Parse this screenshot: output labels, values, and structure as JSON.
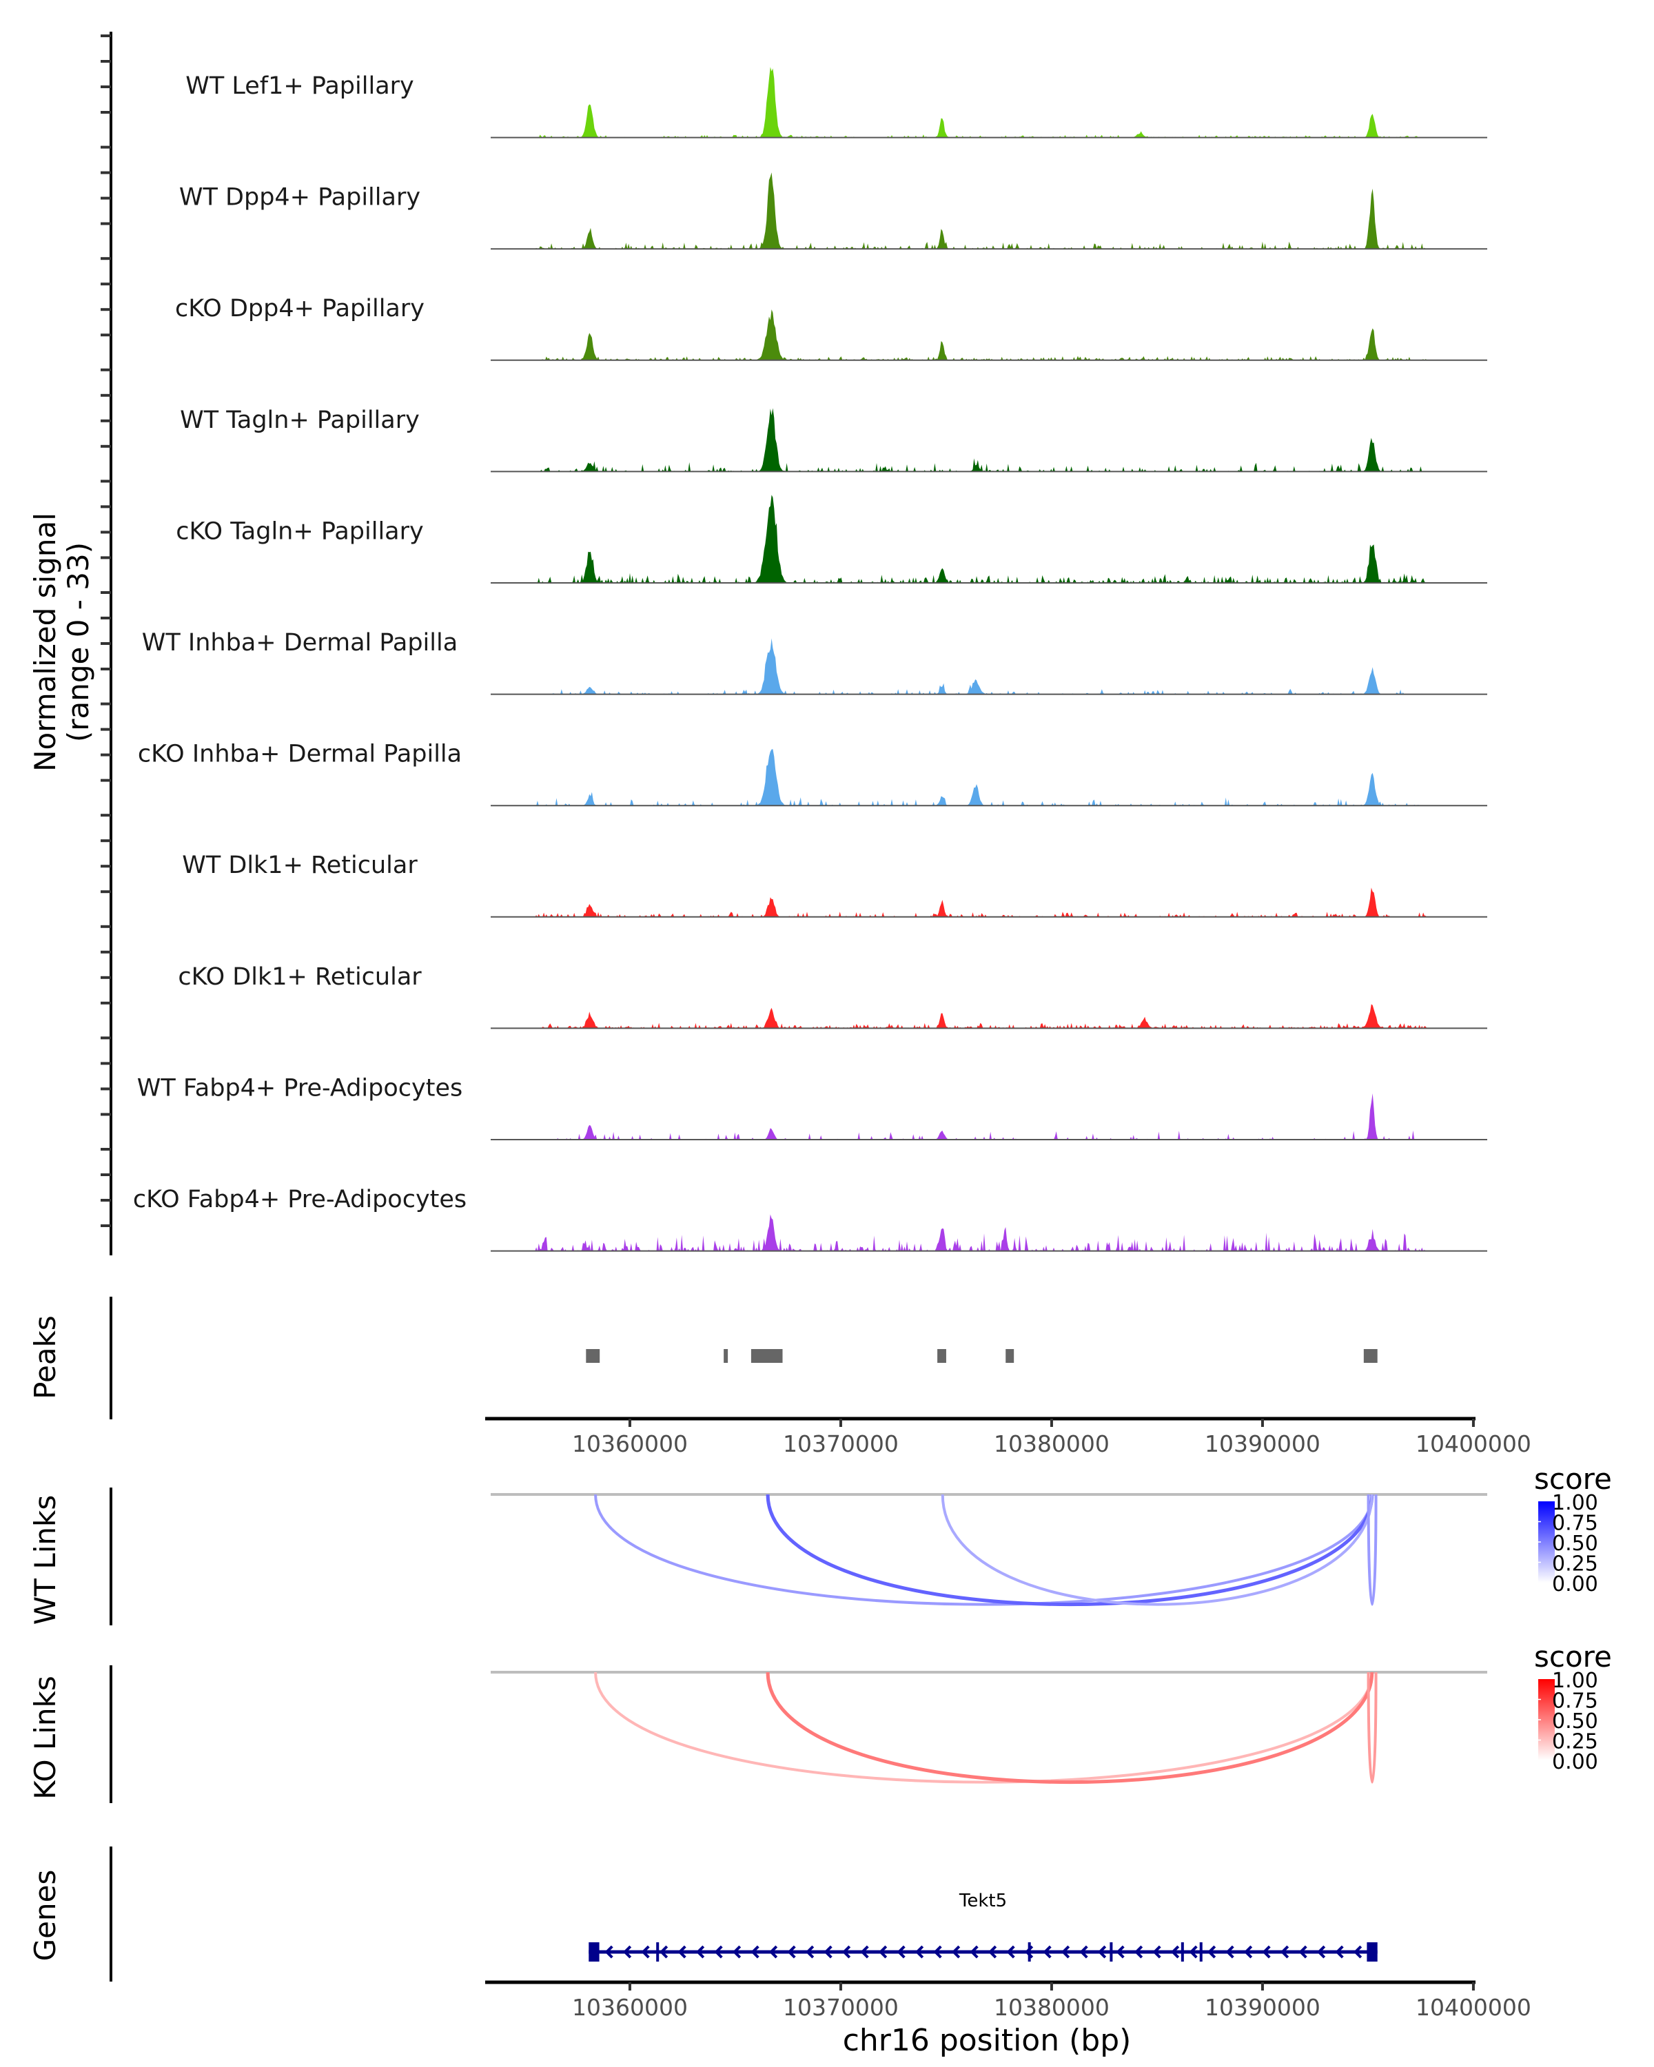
{
  "chart_data": {
    "type": "area",
    "title": "",
    "chromosome": "chr16",
    "xlabel": "chr16 position (bp)",
    "xlim": [
      10353400,
      10400100
    ],
    "xticks": [
      10360000,
      10370000,
      10380000,
      10390000,
      10400000
    ],
    "xtick_labels": [
      "10360000",
      "10370000",
      "10380000",
      "10390000",
      "10400000"
    ],
    "coverage": {
      "ylabel_line1": "Normalized signal",
      "ylabel_line2": "(range 0 - 33)",
      "ylim": [
        0,
        33
      ],
      "tracks": [
        {
          "name": "WT Lef1+ Papillary",
          "color": "#6bd40c",
          "peaks": [
            [
              10358100,
              12,
              300
            ],
            [
              10366700,
              26.5,
              350
            ],
            [
              10374800,
              6.3,
              200
            ],
            [
              10384200,
              1.6,
              300
            ],
            [
              10395200,
              8.7,
              250
            ]
          ],
          "noise": 0.5,
          "noise_density": 0.5
        },
        {
          "name": "WT Dpp4+ Papillary",
          "color": "#4b8b0c",
          "peaks": [
            [
              10358100,
              7,
              250
            ],
            [
              10366700,
              26,
              350
            ],
            [
              10374800,
              6,
              200
            ],
            [
              10395200,
              20,
              250
            ]
          ],
          "noise": 1.2,
          "noise_density": 0.35
        },
        {
          "name": "cKO Dpp4+ Papillary",
          "color": "#4b8b0c",
          "peaks": [
            [
              10358100,
              8.7,
              300
            ],
            [
              10366700,
              16.5,
              450
            ],
            [
              10374800,
              6,
              200
            ],
            [
              10395200,
              12,
              250
            ]
          ],
          "noise": 0.7,
          "noise_density": 0.6
        },
        {
          "name": "WT Tagln+ Papillary",
          "color": "#006400",
          "peaks": [
            [
              10358100,
              3.2,
              300
            ],
            [
              10366700,
              23,
              400
            ],
            [
              10376400,
              2.5,
              200
            ],
            [
              10395200,
              11,
              300
            ]
          ],
          "noise": 1.5,
          "noise_density": 0.3
        },
        {
          "name": "cKO Tagln+ Papillary",
          "color": "#006400",
          "peaks": [
            [
              10358100,
              11,
              300
            ],
            [
              10366700,
              28.5,
              500
            ],
            [
              10374800,
              5,
              250
            ],
            [
              10395200,
              12.6,
              300
            ]
          ],
          "noise": 1.6,
          "noise_density": 0.55
        },
        {
          "name": "WT Inhba+ Dermal Papilla",
          "color": "#5aa8eb",
          "peaks": [
            [
              10358100,
              2.5,
              300
            ],
            [
              10366700,
              18.6,
              450
            ],
            [
              10374800,
              3.2,
              200
            ],
            [
              10376400,
              4.7,
              350
            ],
            [
              10395200,
              8.7,
              300
            ]
          ],
          "noise": 1.0,
          "noise_density": 0.3
        },
        {
          "name": "cKO Inhba+ Dermal Papilla",
          "color": "#5aa8eb",
          "peaks": [
            [
              10358100,
              3.2,
              250
            ],
            [
              10366700,
              20,
              450
            ],
            [
              10374800,
              3.5,
              200
            ],
            [
              10376400,
              7,
              300
            ],
            [
              10395200,
              10.7,
              300
            ]
          ],
          "noise": 1.6,
          "noise_density": 0.2
        },
        {
          "name": "WT Dlk1+ Reticular",
          "color": "#ff2626",
          "peaks": [
            [
              10358100,
              4.7,
              250
            ],
            [
              10366700,
              6.3,
              300
            ],
            [
              10374800,
              5.5,
              200
            ],
            [
              10395200,
              9.5,
              250
            ]
          ],
          "noise": 0.9,
          "noise_density": 0.4
        },
        {
          "name": "cKO Dlk1+ Reticular",
          "color": "#ff2626",
          "peaks": [
            [
              10358100,
              4.7,
              300
            ],
            [
              10366700,
              6.3,
              300
            ],
            [
              10374800,
              5.5,
              200
            ],
            [
              10384400,
              3,
              300
            ],
            [
              10395200,
              6.7,
              350
            ]
          ],
          "noise": 0.9,
          "noise_density": 0.6
        },
        {
          "name": "WT Fabp4+ Pre-Adipocytes",
          "color": "#a93ee8",
          "peaks": [
            [
              10358100,
              5.5,
              250
            ],
            [
              10366700,
              4,
              250
            ],
            [
              10374800,
              3,
              250
            ],
            [
              10395200,
              15.8,
              200
            ]
          ],
          "noise": 1.6,
          "noise_density": 0.15
        },
        {
          "name": "cKO Fabp4+ Pre-Adipocytes",
          "color": "#a93ee8",
          "peaks": [
            [
              10366700,
              12.6,
              300
            ],
            [
              10374800,
              8,
              200
            ],
            [
              10377800,
              8,
              150
            ],
            [
              10395200,
              4.7,
              300
            ]
          ],
          "noise": 3.0,
          "noise_density": 0.45
        }
      ]
    },
    "peaks_track": {
      "label": "Peaks",
      "color": "#666666",
      "regions": [
        [
          10357920,
          10358570
        ],
        [
          10364450,
          10364610
        ],
        [
          10365750,
          10367240
        ],
        [
          10374580,
          10375000
        ],
        [
          10377820,
          10378210
        ],
        [
          10394800,
          10395450
        ]
      ]
    },
    "links": [
      {
        "label": "WT Links",
        "legend_title": "score",
        "high_color": "#0000ff",
        "low_color": "#ffffff",
        "legend_ticks": [
          "1.00",
          "0.75",
          "0.50",
          "0.25",
          "0.00"
        ],
        "arcs": [
          {
            "start": 10358370,
            "end": 10395190,
            "score": 0.35
          },
          {
            "start": 10366540,
            "end": 10395190,
            "score": 0.6
          },
          {
            "start": 10374830,
            "end": 10395190,
            "score": 0.28
          },
          {
            "start": 10395020,
            "end": 10395380,
            "score": 0.35
          }
        ]
      },
      {
        "label": "KO Links",
        "legend_title": "score",
        "high_color": "#ff0000",
        "low_color": "#ffffff",
        "legend_ticks": [
          "1.00",
          "0.75",
          "0.50",
          "0.25",
          "0.00"
        ],
        "arcs": [
          {
            "start": 10358370,
            "end": 10395190,
            "score": 0.22
          },
          {
            "start": 10366540,
            "end": 10395190,
            "score": 0.5
          },
          {
            "start": 10395020,
            "end": 10395380,
            "score": 0.35
          }
        ]
      }
    ],
    "genes_track": {
      "label": "Genes",
      "color": "#00008b",
      "genes": [
        {
          "name": "Tekt5",
          "start": 10358050,
          "end": 10395450,
          "strand": "-",
          "exons": [
            [
              10358050,
              10358550
            ],
            [
              10361250,
              10361350
            ],
            [
              10378880,
              10378980
            ],
            [
              10382760,
              10382840
            ],
            [
              10386140,
              10386220
            ],
            [
              10387020,
              10387100
            ],
            [
              10394950,
              10395450
            ]
          ]
        }
      ]
    }
  }
}
